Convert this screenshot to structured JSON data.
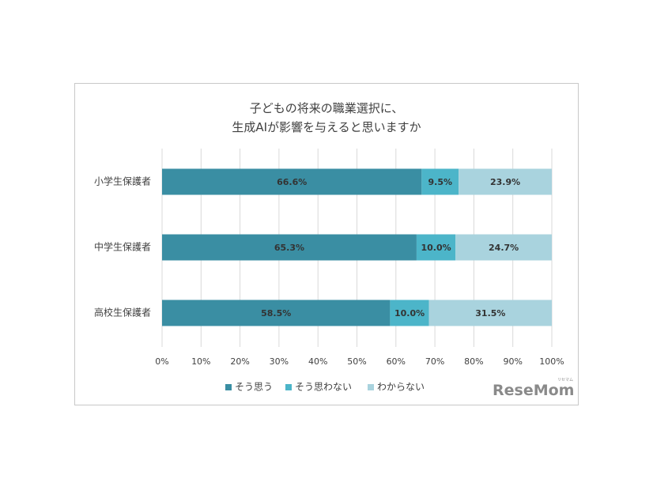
{
  "chart_data": {
    "type": "bar",
    "orientation": "horizontal",
    "stacked": true,
    "title_lines": [
      "子どもの将来の職業選択に、",
      "生成AIが影響を与えると思いますか"
    ],
    "categories": [
      "小学生保護者",
      "中学生保護者",
      "高校生保護者"
    ],
    "series": [
      {
        "name": "そう思う",
        "color": "#3a8ea3",
        "values": [
          66.6,
          65.3,
          58.5
        ],
        "labels": [
          "66.6%",
          "65.3%",
          "58.5%"
        ]
      },
      {
        "name": "そう思わない",
        "color": "#4cb5c9",
        "values": [
          9.5,
          10.0,
          10.0
        ],
        "labels": [
          "9.5%",
          "10.0%",
          "10.0%"
        ]
      },
      {
        "name": "わからない",
        "color": "#a9d3de",
        "values": [
          23.9,
          24.7,
          31.5
        ],
        "labels": [
          "23.9%",
          "24.7%",
          "31.5%"
        ]
      }
    ],
    "xlim": [
      0,
      100
    ],
    "xticks": [
      "0%",
      "10%",
      "20%",
      "30%",
      "40%",
      "50%",
      "60%",
      "70%",
      "80%",
      "90%",
      "100%"
    ],
    "grid": true,
    "legend": "bottom"
  },
  "logo": {
    "text": "ReseMom",
    "sub": "リセマム"
  }
}
